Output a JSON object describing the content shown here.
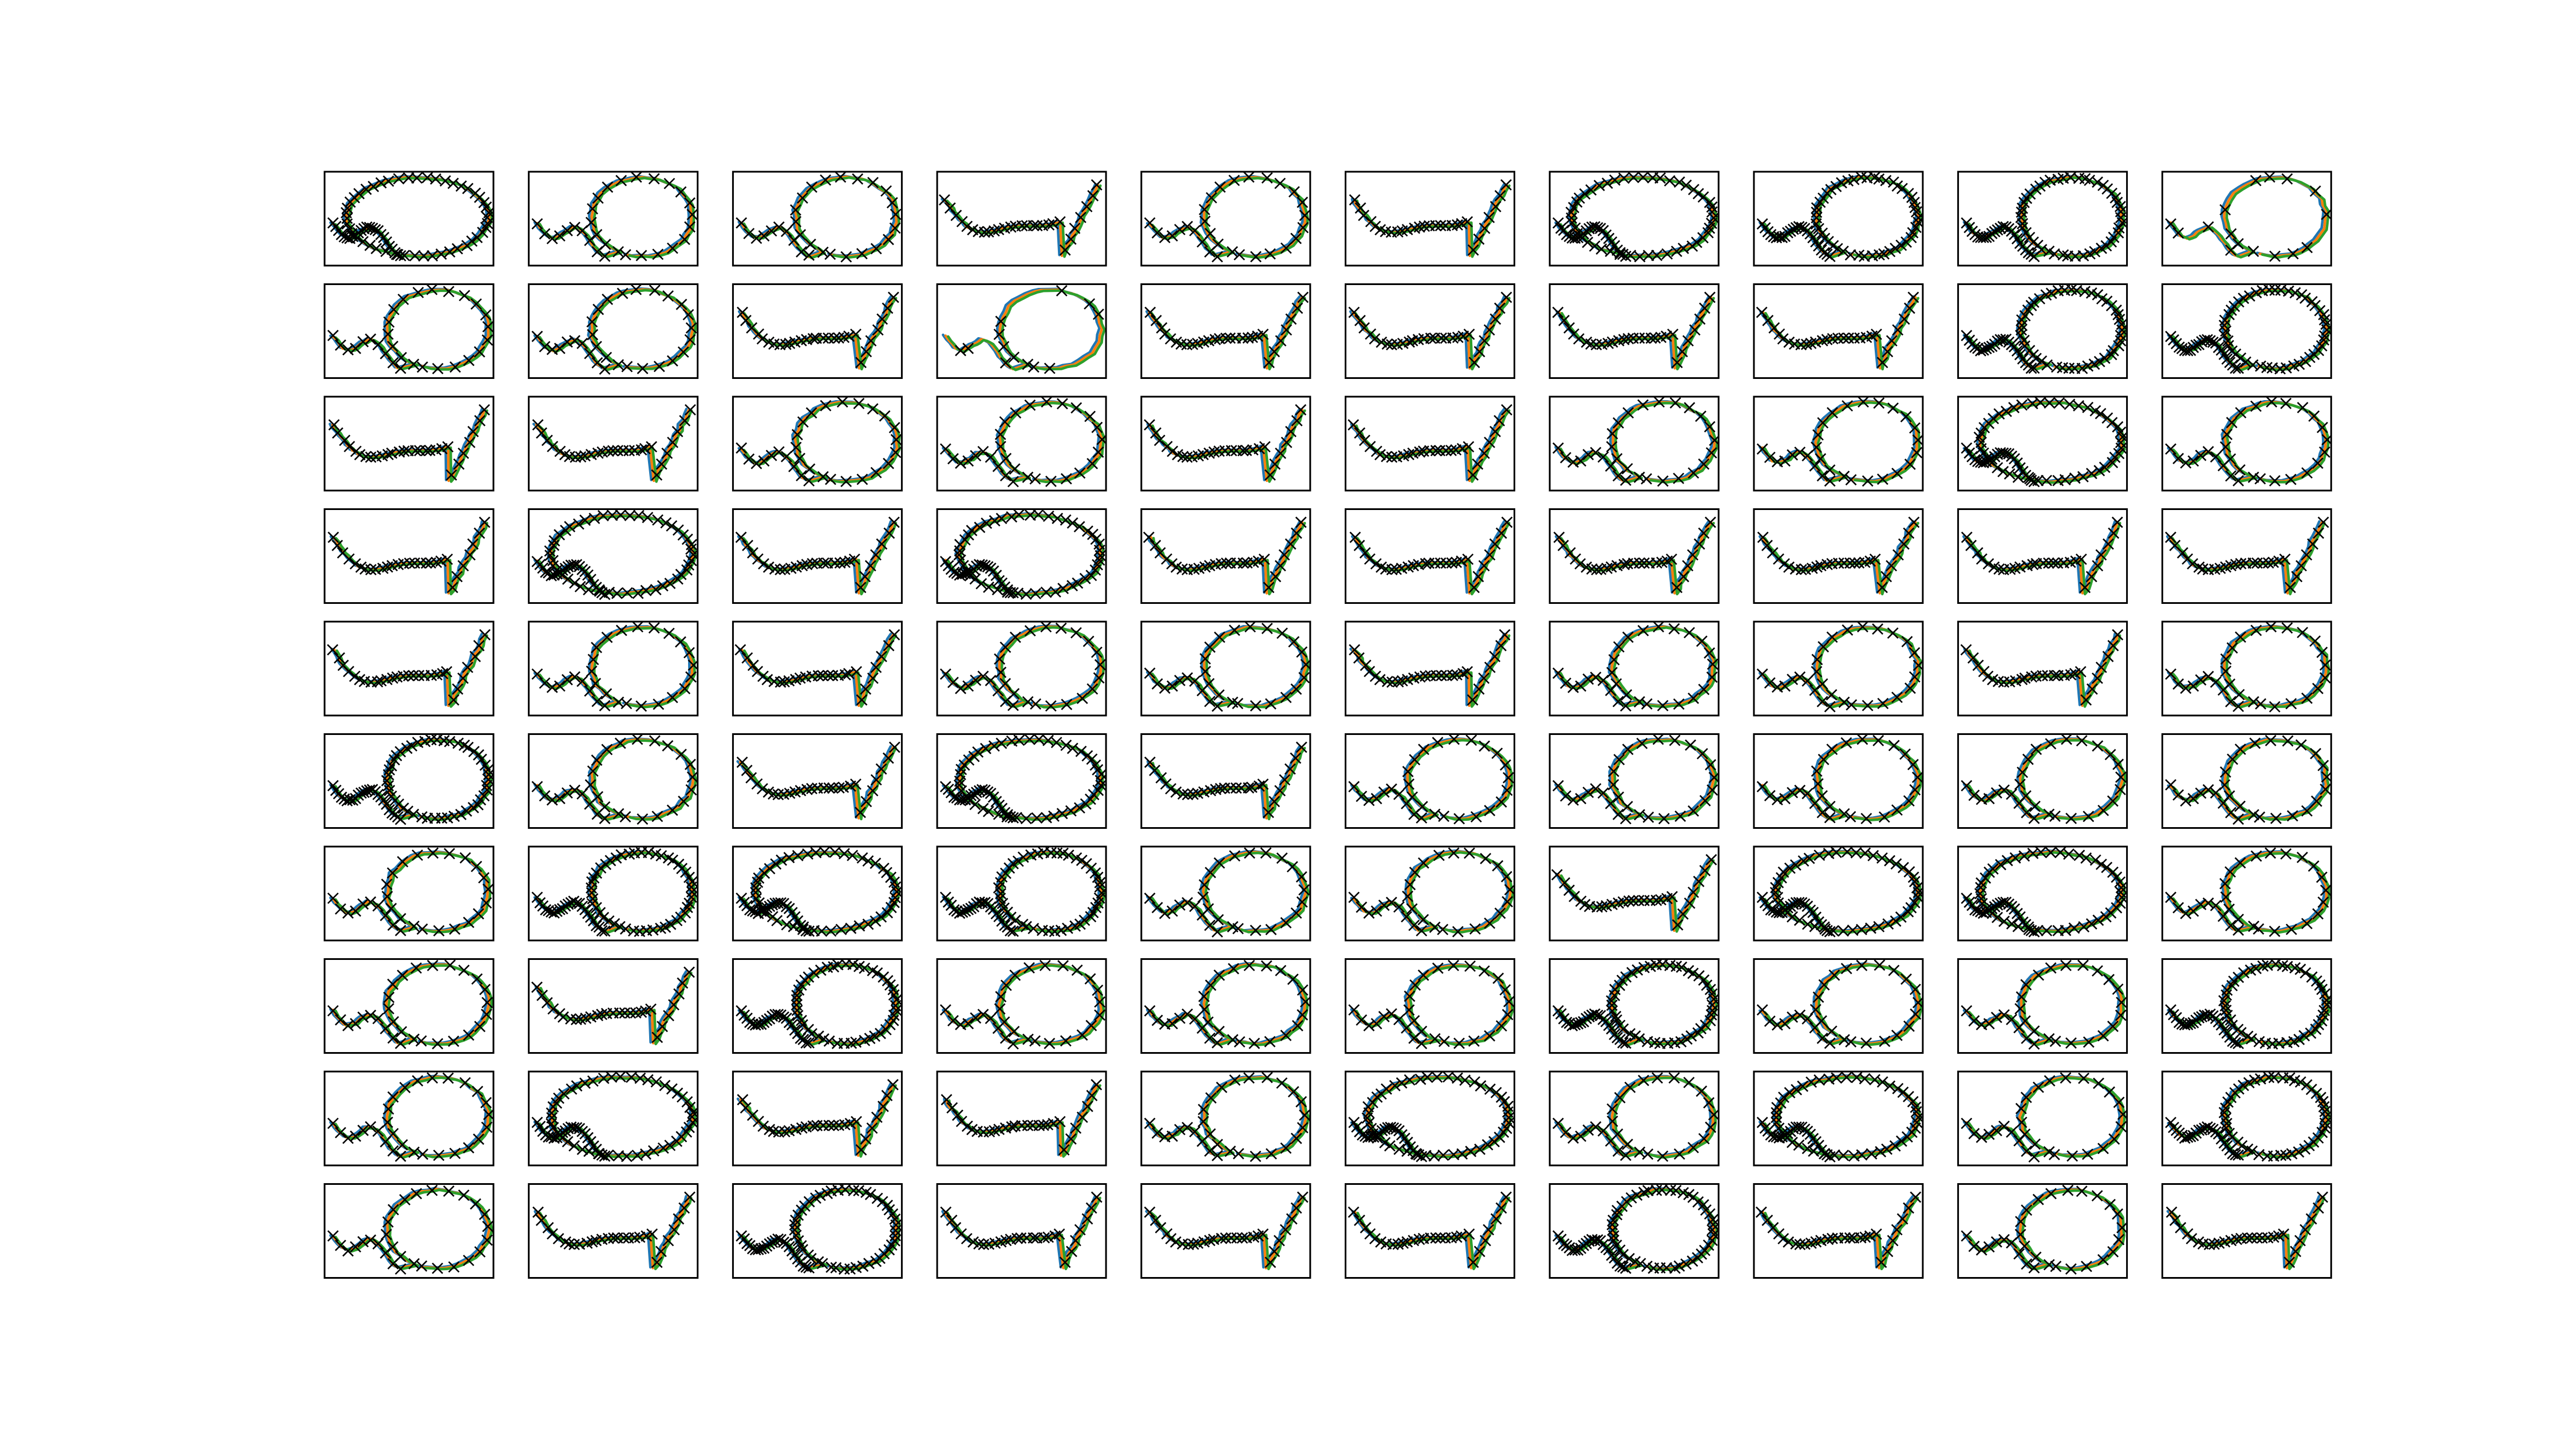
{
  "colors": {
    "background": "#ffffff",
    "frame": "#000000",
    "marker": "#000000",
    "series": [
      "#1f77b4",
      "#ff7f0e",
      "#2ca02c"
    ]
  },
  "chart_data": {
    "type": "line",
    "title": "",
    "xlabel": "",
    "ylabel": "",
    "grid": false,
    "ticks": false,
    "legend": "none",
    "layout": {
      "rows": 10,
      "cols": 10
    },
    "marker": "x",
    "series": [
      {
        "color": "#1f77b4"
      },
      {
        "color": "#ff7f0e"
      },
      {
        "color": "#2ca02c"
      }
    ],
    "panels": [
      {
        "shape": "E",
        "dense": true,
        "variant": 0
      },
      {
        "shape": "L",
        "dense": false,
        "variant": 1
      },
      {
        "shape": "L",
        "dense": false,
        "variant": 2
      },
      {
        "shape": "U",
        "dense": false,
        "variant": 3
      },
      {
        "shape": "L",
        "dense": false,
        "variant": 4
      },
      {
        "shape": "U",
        "dense": false,
        "variant": 5
      },
      {
        "shape": "E",
        "dense": true,
        "variant": 6
      },
      {
        "shape": "H",
        "dense": true,
        "variant": 7
      },
      {
        "shape": "H",
        "dense": true,
        "variant": 8
      },
      {
        "shape": "S",
        "dense": false,
        "variant": 9
      },
      {
        "shape": "L",
        "dense": false,
        "variant": 10
      },
      {
        "shape": "L",
        "dense": false,
        "variant": 11
      },
      {
        "shape": "U",
        "dense": false,
        "variant": 12
      },
      {
        "shape": "S",
        "dense": false,
        "variant": 13
      },
      {
        "shape": "U",
        "dense": false,
        "variant": 14
      },
      {
        "shape": "U",
        "dense": false,
        "variant": 15
      },
      {
        "shape": "U",
        "dense": false,
        "variant": 16
      },
      {
        "shape": "U",
        "dense": false,
        "variant": 17
      },
      {
        "shape": "H",
        "dense": true,
        "variant": 18
      },
      {
        "shape": "H",
        "dense": true,
        "variant": 19
      },
      {
        "shape": "U",
        "dense": false,
        "variant": 20
      },
      {
        "shape": "U",
        "dense": false,
        "variant": 21
      },
      {
        "shape": "L",
        "dense": false,
        "variant": 22
      },
      {
        "shape": "L",
        "dense": false,
        "variant": 23
      },
      {
        "shape": "U",
        "dense": false,
        "variant": 24
      },
      {
        "shape": "U",
        "dense": false,
        "variant": 25
      },
      {
        "shape": "L",
        "dense": false,
        "variant": 26
      },
      {
        "shape": "L",
        "dense": false,
        "variant": 27
      },
      {
        "shape": "E",
        "dense": true,
        "variant": 28
      },
      {
        "shape": "L",
        "dense": false,
        "variant": 29
      },
      {
        "shape": "U",
        "dense": false,
        "variant": 30
      },
      {
        "shape": "E",
        "dense": true,
        "variant": 31
      },
      {
        "shape": "U",
        "dense": false,
        "variant": 32
      },
      {
        "shape": "E",
        "dense": true,
        "variant": 33
      },
      {
        "shape": "U",
        "dense": false,
        "variant": 34
      },
      {
        "shape": "U",
        "dense": false,
        "variant": 35
      },
      {
        "shape": "U",
        "dense": false,
        "variant": 36
      },
      {
        "shape": "U",
        "dense": false,
        "variant": 37
      },
      {
        "shape": "U",
        "dense": false,
        "variant": 38
      },
      {
        "shape": "U",
        "dense": false,
        "variant": 39
      },
      {
        "shape": "U",
        "dense": false,
        "variant": 40
      },
      {
        "shape": "L",
        "dense": false,
        "variant": 41
      },
      {
        "shape": "U",
        "dense": false,
        "variant": 42
      },
      {
        "shape": "L",
        "dense": false,
        "variant": 43
      },
      {
        "shape": "L",
        "dense": false,
        "variant": 44
      },
      {
        "shape": "U",
        "dense": false,
        "variant": 45
      },
      {
        "shape": "L",
        "dense": false,
        "variant": 46
      },
      {
        "shape": "L",
        "dense": false,
        "variant": 47
      },
      {
        "shape": "U",
        "dense": false,
        "variant": 48
      },
      {
        "shape": "L",
        "dense": false,
        "variant": 49
      },
      {
        "shape": "H",
        "dense": true,
        "variant": 50
      },
      {
        "shape": "L",
        "dense": false,
        "variant": 51
      },
      {
        "shape": "U",
        "dense": false,
        "variant": 52
      },
      {
        "shape": "E",
        "dense": true,
        "variant": 53
      },
      {
        "shape": "U",
        "dense": false,
        "variant": 54
      },
      {
        "shape": "L",
        "dense": false,
        "variant": 55
      },
      {
        "shape": "L",
        "dense": false,
        "variant": 56
      },
      {
        "shape": "L",
        "dense": false,
        "variant": 57
      },
      {
        "shape": "L",
        "dense": false,
        "variant": 58
      },
      {
        "shape": "L",
        "dense": false,
        "variant": 59
      },
      {
        "shape": "L",
        "dense": false,
        "variant": 60
      },
      {
        "shape": "H",
        "dense": true,
        "variant": 61
      },
      {
        "shape": "E",
        "dense": true,
        "variant": 62
      },
      {
        "shape": "L",
        "dense": true,
        "variant": 63
      },
      {
        "shape": "L",
        "dense": false,
        "variant": 64
      },
      {
        "shape": "L",
        "dense": false,
        "variant": 65
      },
      {
        "shape": "U",
        "dense": false,
        "variant": 66
      },
      {
        "shape": "E",
        "dense": true,
        "variant": 67
      },
      {
        "shape": "E",
        "dense": true,
        "variant": 68
      },
      {
        "shape": "L",
        "dense": false,
        "variant": 69
      },
      {
        "shape": "L",
        "dense": false,
        "variant": 70
      },
      {
        "shape": "U",
        "dense": false,
        "variant": 71
      },
      {
        "shape": "H",
        "dense": true,
        "variant": 72
      },
      {
        "shape": "L",
        "dense": false,
        "variant": 73
      },
      {
        "shape": "L",
        "dense": false,
        "variant": 74
      },
      {
        "shape": "L",
        "dense": false,
        "variant": 75
      },
      {
        "shape": "H",
        "dense": true,
        "variant": 76
      },
      {
        "shape": "L",
        "dense": false,
        "variant": 77
      },
      {
        "shape": "L",
        "dense": false,
        "variant": 78
      },
      {
        "shape": "H",
        "dense": true,
        "variant": 79
      },
      {
        "shape": "L",
        "dense": false,
        "variant": 80
      },
      {
        "shape": "E",
        "dense": true,
        "variant": 81
      },
      {
        "shape": "U",
        "dense": false,
        "variant": 82
      },
      {
        "shape": "U",
        "dense": false,
        "variant": 83
      },
      {
        "shape": "L",
        "dense": false,
        "variant": 84
      },
      {
        "shape": "E",
        "dense": true,
        "variant": 85
      },
      {
        "shape": "L",
        "dense": false,
        "variant": 86
      },
      {
        "shape": "E",
        "dense": true,
        "variant": 87
      },
      {
        "shape": "L",
        "dense": false,
        "variant": 88
      },
      {
        "shape": "H",
        "dense": true,
        "variant": 89
      },
      {
        "shape": "L",
        "dense": false,
        "variant": 90
      },
      {
        "shape": "U",
        "dense": false,
        "variant": 91
      },
      {
        "shape": "H",
        "dense": true,
        "variant": 92
      },
      {
        "shape": "U",
        "dense": false,
        "variant": 93
      },
      {
        "shape": "U",
        "dense": false,
        "variant": 94
      },
      {
        "shape": "U",
        "dense": false,
        "variant": 95
      },
      {
        "shape": "H",
        "dense": true,
        "variant": 96
      },
      {
        "shape": "U",
        "dense": false,
        "variant": 97
      },
      {
        "shape": "L",
        "dense": false,
        "variant": 98
      },
      {
        "shape": "U",
        "dense": false,
        "variant": 99
      }
    ]
  }
}
